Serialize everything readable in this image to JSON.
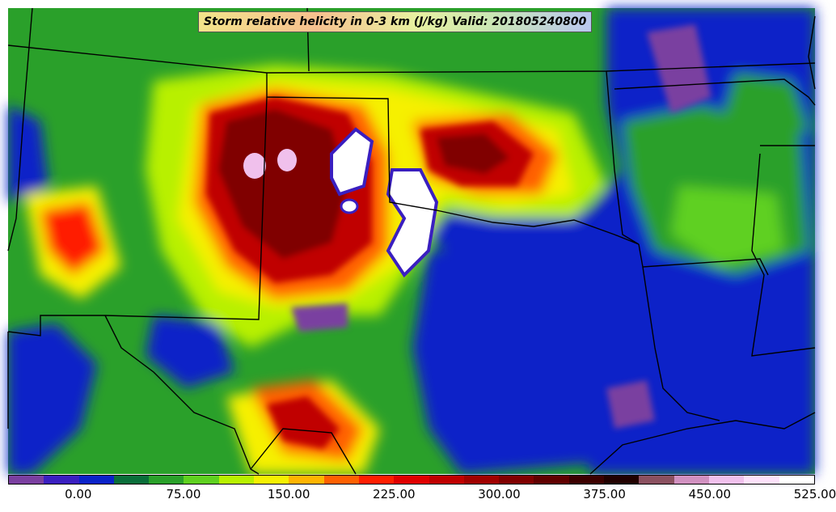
{
  "title": "Storm relative helicity in 0-3 km (J/kg) Valid: 201805240800",
  "colorbar": {
    "colors": [
      "#7a3fa0",
      "#3a1fc0",
      "#0a22c8",
      "#0a6e3a",
      "#2aa02a",
      "#5fd020",
      "#b8f000",
      "#f6f000",
      "#ffb400",
      "#ff6000",
      "#ff1e00",
      "#e00000",
      "#c00000",
      "#a00000",
      "#800000",
      "#600000",
      "#3c0000",
      "#200000",
      "#8a5060",
      "#d090c0",
      "#f0c0ec",
      "#fce0fa",
      "#ffffff"
    ],
    "tick_labels": [
      "0.00",
      "75.00",
      "150.00",
      "225.00",
      "300.00",
      "375.00",
      "450.00",
      "525.00"
    ],
    "tick_positions": [
      2,
      5,
      8,
      11,
      14,
      17,
      20,
      23
    ]
  }
}
